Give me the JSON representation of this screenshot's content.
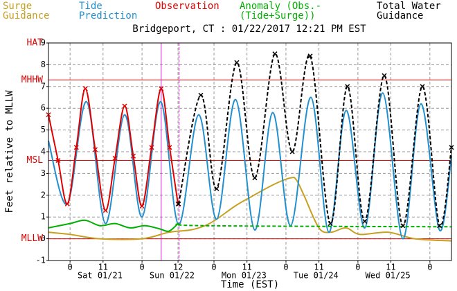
{
  "chart_data": {
    "type": "line",
    "title": "Bridgeport, CT : 01/22/2017 12:21 PM EST",
    "x_label": "Time (EST)",
    "y_label": "Feet relative to MLLW",
    "xlim": [
      -7.2,
      127.2
    ],
    "ylim": [
      -1,
      9
    ],
    "yticks": [
      -1,
      0,
      1,
      2,
      3,
      4,
      5,
      6,
      7,
      8,
      9
    ],
    "xticks": [
      {
        "value": 0,
        "label": "0"
      },
      {
        "value": 11,
        "label": "11"
      },
      {
        "value": 24,
        "label": "0"
      },
      {
        "value": 36,
        "label": "12"
      },
      {
        "value": 48,
        "label": "0"
      },
      {
        "value": 59,
        "label": "11"
      },
      {
        "value": 72,
        "label": "0"
      },
      {
        "value": 83,
        "label": "11"
      },
      {
        "value": 96,
        "label": "0"
      },
      {
        "value": 107,
        "label": "11"
      },
      {
        "value": 120,
        "label": "0"
      }
    ],
    "day_labels": [
      {
        "value": 10,
        "label": "Sat 01/21"
      },
      {
        "value": 34,
        "label": "Sun 01/22"
      },
      {
        "value": 58,
        "label": "Mon 01/23"
      },
      {
        "value": 82,
        "label": "Tue 01/24"
      },
      {
        "value": 106,
        "label": "Wed 01/25"
      }
    ],
    "datums": [
      {
        "label": "HAT",
        "value": 9
      },
      {
        "label": "MHHW",
        "value": 7.3
      },
      {
        "label": "MSL",
        "value": 3.6
      },
      {
        "label": "MLLW",
        "value": 0
      }
    ],
    "vlines": [
      30.4,
      36.35
    ],
    "grid": true,
    "series": [
      {
        "name": "Surge Guidance",
        "color": "#c8a020",
        "markers": false,
        "x": [
          -7.2,
          0,
          10,
          24,
          33,
          40,
          45,
          48.9,
          55,
          60,
          68,
          73.6,
          75.5,
          78,
          83,
          87,
          92,
          96.7,
          106,
          115,
          127.2
        ],
        "values": [
          0.3,
          0.2,
          0.0,
          0.0,
          0.3,
          0.4,
          0.6,
          0.9,
          1.5,
          1.9,
          2.5,
          2.8,
          2.7,
          2.0,
          0.5,
          0.3,
          0.5,
          0.2,
          0.3,
          0.0,
          -0.1
        ]
      },
      {
        "name": "Tide Prediction",
        "color": "#2090d0",
        "markers": false,
        "x": [
          -7.2,
          -0.9,
          5.5,
          11.8,
          18.2,
          24,
          30.2,
          36.2,
          42.9,
          48.9,
          55.2,
          61.6,
          67.6,
          73.6,
          80.3,
          86.3,
          92.1,
          98.3,
          104.3,
          111,
          117,
          123.2,
          127.2
        ],
        "values": [
          4.5,
          1.6,
          6.3,
          0.7,
          5.7,
          1.0,
          6.3,
          0.65,
          5.7,
          0.9,
          6.4,
          0.4,
          5.8,
          0.6,
          6.5,
          0.3,
          5.9,
          0.5,
          6.7,
          0.0,
          6.2,
          0.4,
          3.8
        ]
      },
      {
        "name": "Observation",
        "color": "#e00000",
        "markers": true,
        "x": [
          -7.2,
          -4,
          -0.9,
          2.1,
          5.1,
          8.4,
          11.8,
          15,
          18.2,
          21.1,
          24,
          27.2,
          30.4,
          33.2,
          36
        ],
        "values": [
          5.7,
          3.6,
          1.6,
          4.2,
          6.9,
          4.1,
          1.3,
          3.7,
          6.1,
          3.8,
          1.5,
          4.2,
          6.9,
          4.2,
          1.6
        ]
      },
      {
        "name": "Anomaly (Obs.-(Tide+Surge))",
        "color": "#00b000",
        "markers": false,
        "x": [
          -7.2,
          0,
          5,
          10,
          15,
          20,
          25,
          30,
          33,
          36
        ],
        "values": [
          0.5,
          0.7,
          0.85,
          0.6,
          0.7,
          0.5,
          0.6,
          0.45,
          0.35,
          0.7
        ],
        "forecast": {
          "x": [
            36,
            45,
            127.2
          ],
          "values": [
            0.7,
            0.6,
            0.55
          ]
        }
      },
      {
        "name": "Total Water Guidance",
        "color": "#000000",
        "markers": true,
        "dashed": true,
        "x": [
          36.2,
          43.6,
          48.9,
          55.6,
          61.6,
          68.3,
          74.1,
          80.1,
          86.8,
          92.5,
          98.3,
          104.8,
          111,
          117.5,
          123.2,
          127.2
        ],
        "values": [
          1.6,
          6.6,
          2.3,
          8.1,
          2.8,
          8.5,
          4.0,
          8.4,
          0.7,
          7.0,
          0.8,
          7.5,
          0.6,
          7.0,
          0.6,
          4.2
        ]
      }
    ]
  }
}
